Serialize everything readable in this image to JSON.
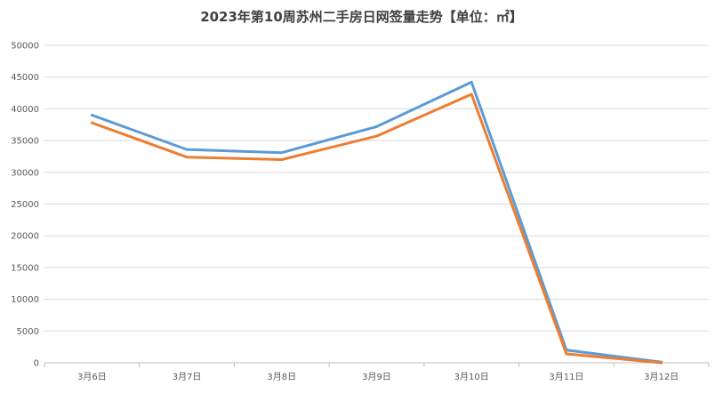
{
  "chart_data": {
    "type": "line",
    "title": "2023年第10周苏州二手房日网签量走势【单位：㎡】",
    "categories": [
      "3月6日",
      "3月7日",
      "3月8日",
      "3月9日",
      "3月10日",
      "3月11日",
      "3月12日"
    ],
    "series": [
      {
        "values": [
          39000,
          33600,
          33100,
          37200,
          44200,
          2000,
          100
        ],
        "color": "#5b9bd5"
      },
      {
        "values": [
          37800,
          32400,
          32000,
          35700,
          42300,
          1400,
          0
        ],
        "color": "#ed7d31"
      }
    ],
    "yticks": [
      "0",
      "5000",
      "10000",
      "15000",
      "20000",
      "25000",
      "30000",
      "35000",
      "40000",
      "45000",
      "50000"
    ],
    "ylim": [
      0,
      50000
    ],
    "grid": true,
    "legend": "none"
  }
}
